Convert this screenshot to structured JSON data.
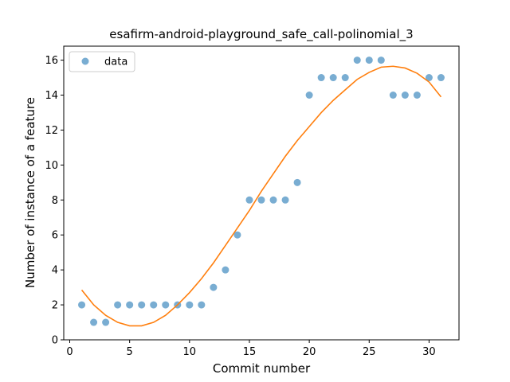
{
  "chart_data": {
    "type": "scatter",
    "title": "esafirm-android-playground_safe_call-polinomial_3",
    "xlabel": "Commit number",
    "ylabel": "Number of instance of a feature",
    "xlim": [
      -0.5,
      32.5
    ],
    "ylim": [
      0,
      16.8
    ],
    "xticks": [
      0,
      5,
      10,
      15,
      20,
      25,
      30
    ],
    "yticks": [
      0,
      2,
      4,
      6,
      8,
      10,
      12,
      14,
      16
    ],
    "grid": false,
    "legend_position": "top-left",
    "series": [
      {
        "name": "data",
        "kind": "scatter",
        "color": "#1f77b4",
        "x": [
          1,
          2,
          3,
          4,
          5,
          6,
          7,
          8,
          9,
          10,
          11,
          12,
          13,
          14,
          15,
          16,
          17,
          18,
          19,
          20,
          21,
          22,
          23,
          24,
          25,
          26,
          27,
          28,
          29,
          30,
          31
        ],
        "y": [
          2,
          1,
          1,
          2,
          2,
          2,
          2,
          2,
          2,
          2,
          2,
          3,
          4,
          6,
          8,
          8,
          8,
          8,
          9,
          14,
          15,
          15,
          15,
          16,
          16,
          16,
          14,
          14,
          14,
          15,
          15
        ]
      },
      {
        "kind": "line",
        "color": "#ff7f0e",
        "x": [
          1,
          2,
          3,
          4,
          5,
          6,
          7,
          8,
          9,
          10,
          11,
          12,
          13,
          14,
          15,
          16,
          17,
          18,
          19,
          20,
          21,
          22,
          23,
          24,
          25,
          26,
          27,
          28,
          29,
          30,
          31
        ],
        "y": [
          2.85,
          2.0,
          1.4,
          1.0,
          0.8,
          0.8,
          1.0,
          1.4,
          2.0,
          2.7,
          3.5,
          4.4,
          5.4,
          6.4,
          7.4,
          8.5,
          9.5,
          10.5,
          11.4,
          12.2,
          13.0,
          13.7,
          14.3,
          14.9,
          15.3,
          15.6,
          15.65,
          15.55,
          15.25,
          14.75,
          13.9
        ]
      }
    ]
  }
}
